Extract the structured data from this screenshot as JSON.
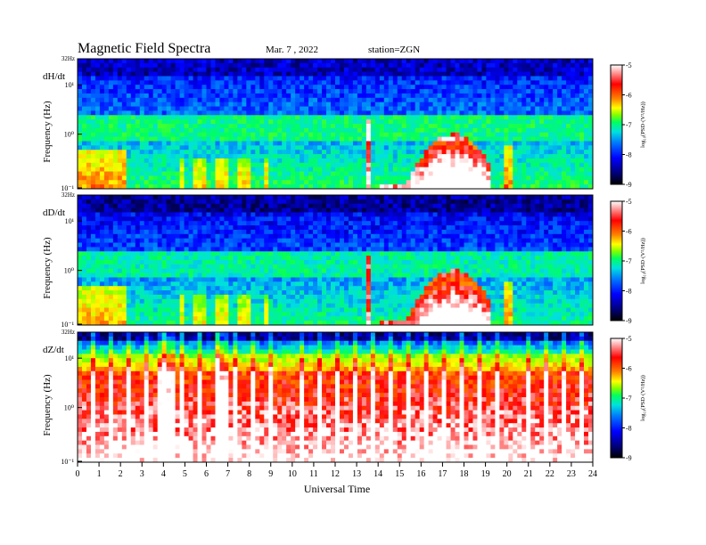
{
  "header": {
    "title": "Magnetic  Field  Spectra",
    "date": "Mar. 7  , 2022",
    "station": "station=ZGN"
  },
  "chart_data": [
    {
      "type": "heatmap",
      "panel_label": "dH/dt",
      "ylabel": "Frequency  (Hz)",
      "y_top_label": "32Hz",
      "y_ticks": [
        "10⁻¹",
        "10⁰",
        "10¹"
      ],
      "xlim": [
        0,
        24
      ],
      "scale": "log",
      "colorbar": {
        "ticks": [
          -9,
          -8,
          -7,
          -6,
          -5
        ],
        "label": "log₁₀(PSD·(V²/Hz))"
      },
      "features": [
        {
          "x_start": 0.0,
          "x_end": 13.3,
          "level": "green/cyan band near 1 Hz, red below 0.5 Hz intermittently"
        },
        {
          "x_start": 13.4,
          "x_end": 13.6,
          "level": "strong broadband spike"
        },
        {
          "x_start": 14.0,
          "x_end": 19.2,
          "level": "intense low-frequency enhancement"
        },
        {
          "x_start": 19.8,
          "x_end": 20.3,
          "level": "moderate enhancement"
        }
      ]
    },
    {
      "type": "heatmap",
      "panel_label": "dD/dt",
      "ylabel": "Frequency  (Hz)",
      "y_top_label": "32Hz",
      "y_ticks": [
        "10⁻¹",
        "10⁰",
        "10¹"
      ],
      "xlim": [
        0,
        24
      ],
      "scale": "log",
      "colorbar": {
        "ticks": [
          -9,
          -8,
          -7,
          -6,
          -5
        ],
        "label": "log₁₀(PSD·(V²/Hz))"
      },
      "features": [
        {
          "x_start": 0.0,
          "x_end": 13.3,
          "level": "cyan/green band near 1 Hz"
        },
        {
          "x_start": 13.4,
          "x_end": 13.6,
          "level": "strong broadband spike"
        },
        {
          "x_start": 14.0,
          "x_end": 19.2,
          "level": "intense low-frequency enhancement"
        },
        {
          "x_start": 19.8,
          "x_end": 20.3,
          "level": "moderate enhancement"
        }
      ]
    },
    {
      "type": "heatmap",
      "panel_label": "dZ/dt",
      "ylabel": "Frequency  (Hz)",
      "y_top_label": "32Hz",
      "y_ticks": [
        "10⁻¹",
        "10⁰",
        "10¹"
      ],
      "xlim": [
        0,
        24
      ],
      "scale": "log",
      "colorbar": {
        "ticks": [
          -9,
          -8,
          -7,
          -6,
          -5
        ],
        "label": "log₁₀(PSD·(V²/Hz))"
      },
      "features": [
        {
          "x_start": 0.0,
          "x_end": 24.0,
          "level": "saturated red/white below ~5 Hz, yellow-green band near 10 Hz, periodic vertical spikes"
        }
      ]
    }
  ],
  "xaxis": {
    "label": "Universal  Time",
    "ticks": [
      "0",
      "1",
      "2",
      "3",
      "4",
      "5",
      "6",
      "7",
      "8",
      "9",
      "10",
      "11",
      "12",
      "13",
      "14",
      "15",
      "16",
      "17",
      "18",
      "19",
      "20",
      "21",
      "22",
      "23",
      "24"
    ]
  },
  "colors": {
    "colormap": [
      "#000000",
      "#000080",
      "#0000ff",
      "#0070ff",
      "#00e0e0",
      "#00ff60",
      "#80ff00",
      "#ffff00",
      "#ff8000",
      "#ff0000",
      "#ffffff"
    ]
  }
}
